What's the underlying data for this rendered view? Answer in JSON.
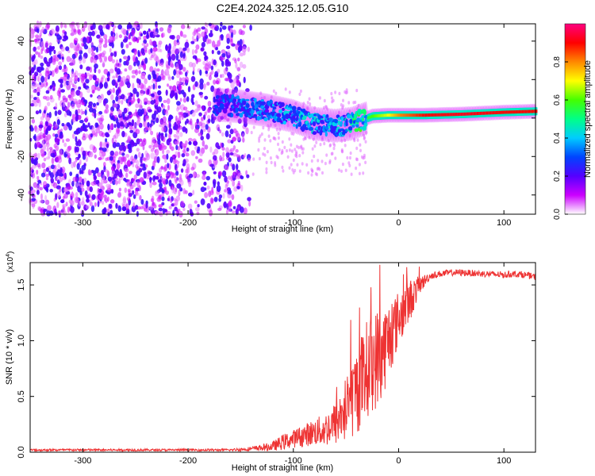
{
  "title": "C2E4.2024.325.12.05.G10",
  "chart_data": [
    {
      "type": "heatmap",
      "xlabel": "Height of straight line (km)",
      "ylabel": "Frequency (Hz)",
      "xlim": [
        -350,
        130
      ],
      "ylim": [
        -50,
        49
      ],
      "x_ticks": [
        -300,
        -200,
        -100,
        0,
        100
      ],
      "y_ticks": [
        -40,
        -20,
        0,
        20,
        40
      ],
      "x_tick_labels": [
        "-300",
        "-200",
        "-100",
        "0",
        "100"
      ],
      "y_tick_labels": [
        "-40",
        "-20",
        "0",
        "20",
        "40"
      ],
      "colorbar": {
        "label": "Normalized spectral amplitude",
        "range": [
          0,
          1
        ],
        "ticks": [
          0.0,
          0.2,
          0.4,
          0.6,
          0.8
        ],
        "tick_labels": [
          "0.0",
          "0.2",
          "0.4",
          "0.6",
          "0.8"
        ],
        "colors": [
          "#ffffff",
          "#cc00ff",
          "#5500ff",
          "#0044ff",
          "#00ccff",
          "#00ff88",
          "#44ff00",
          "#ffff00",
          "#ff8800",
          "#ff0000",
          "#ff0080"
        ]
      },
      "noise_region": {
        "x_range": [
          -350,
          -140
        ],
        "freq_range": [
          -50,
          49
        ],
        "amplitude_approx": [
          0.02,
          0.1
        ]
      },
      "signal_track": [
        {
          "x": -175,
          "freq": 7,
          "amp": 0.25
        },
        {
          "x": -150,
          "freq": 6,
          "amp": 0.3
        },
        {
          "x": -125,
          "freq": 4,
          "amp": 0.3
        },
        {
          "x": -100,
          "freq": 1,
          "amp": 0.35
        },
        {
          "x": -80,
          "freq": -3,
          "amp": 0.35
        },
        {
          "x": -60,
          "freq": -4,
          "amp": 0.35
        },
        {
          "x": -45,
          "freq": -3,
          "amp": 0.4
        },
        {
          "x": -35,
          "freq": -1,
          "amp": 0.5
        },
        {
          "x": -25,
          "freq": 1,
          "amp": 0.6
        },
        {
          "x": -10,
          "freq": 1.5,
          "amp": 0.7
        },
        {
          "x": 0,
          "freq": 1.5,
          "amp": 0.8
        },
        {
          "x": 25,
          "freq": 1.5,
          "amp": 0.9
        },
        {
          "x": 60,
          "freq": 2,
          "amp": 0.92
        },
        {
          "x": 100,
          "freq": 3,
          "amp": 0.9
        },
        {
          "x": 130,
          "freq": 3.5,
          "amp": 0.9
        }
      ]
    },
    {
      "type": "line",
      "xlabel": "Height of straight line (km)",
      "ylabel": "SNR (10 * v/v)",
      "y_multiplier": "(x10",
      "y_multiplier_exp": "4",
      "y_multiplier_close": ")",
      "xlim": [
        -350,
        130
      ],
      "ylim": [
        0,
        1.7
      ],
      "x_ticks": [
        -300,
        -200,
        -100,
        0,
        100
      ],
      "y_ticks": [
        0.0,
        0.5,
        1.0,
        1.5
      ],
      "x_tick_labels": [
        "-300",
        "-200",
        "-100",
        "0",
        "100"
      ],
      "y_tick_labels": [
        "0.0",
        "0.5",
        "1.0",
        "1.5"
      ],
      "line_color": "#ee3333",
      "series": [
        {
          "x": [
            -350,
            -300,
            -250,
            -200,
            -160,
            -140,
            -120,
            -110,
            -100,
            -90,
            -80,
            -70,
            -60,
            -50,
            -40,
            -30,
            -20,
            -15,
            -10,
            -5,
            0,
            10,
            20,
            30,
            40,
            50,
            60,
            80,
            100,
            110,
            120,
            130
          ],
          "y": [
            0.02,
            0.02,
            0.02,
            0.02,
            0.02,
            0.03,
            0.05,
            0.09,
            0.12,
            0.15,
            0.18,
            0.2,
            0.26,
            0.38,
            0.55,
            0.75,
            0.85,
            0.9,
            1.0,
            1.1,
            1.2,
            1.35,
            1.5,
            1.58,
            1.6,
            1.61,
            1.61,
            1.6,
            1.59,
            1.6,
            1.59,
            1.57
          ],
          "spread": [
            0.01,
            0.01,
            0.01,
            0.01,
            0.01,
            0.02,
            0.04,
            0.07,
            0.08,
            0.1,
            0.12,
            0.15,
            0.2,
            0.3,
            0.4,
            0.45,
            0.45,
            0.42,
            0.35,
            0.3,
            0.25,
            0.2,
            0.08,
            0.03,
            0.03,
            0.03,
            0.03,
            0.03,
            0.03,
            0.03,
            0.03,
            0.03
          ]
        }
      ]
    }
  ]
}
